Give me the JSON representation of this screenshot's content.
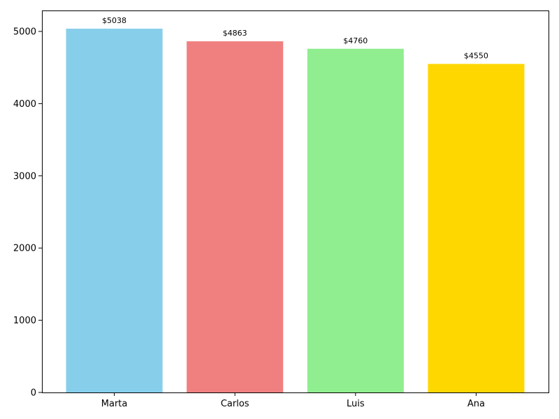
{
  "chart_data": {
    "type": "bar",
    "title": "",
    "xlabel": "",
    "ylabel": "",
    "categories": [
      "Marta",
      "Carlos",
      "Luis",
      "Ana"
    ],
    "values": [
      5038,
      4863,
      4760,
      4550
    ],
    "data_labels": [
      "$5038",
      "$4863",
      "$4760",
      "$4550"
    ],
    "colors": [
      "#87CEEB",
      "#F08080",
      "#90EE90",
      "#FFD700"
    ],
    "ylim": [
      0,
      5290
    ],
    "yticks": [
      0,
      1000,
      2000,
      3000,
      4000,
      5000
    ],
    "ytick_labels": [
      "0",
      "1000",
      "2000",
      "3000",
      "4000",
      "5000"
    ],
    "grid": false,
    "legend": "none"
  }
}
